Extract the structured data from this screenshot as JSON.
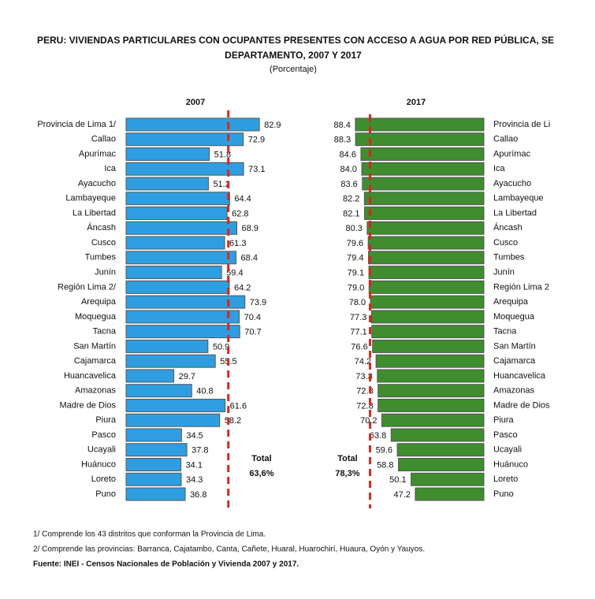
{
  "title_lines": [
    "PERU: VIVIENDAS PARTICULARES CON OCUPANTES PRESENTES CON ACCESO A  AGUA POR RED PÚBLICA, SE",
    "DEPARTAMENTO, 2007 Y 2017"
  ],
  "subtitle": "(Porcentaje)",
  "notes": [
    "1/ Comprende los 43 distritos que conforman la Provincia de Lima.",
    "2/ Comprende las provincias: Barranca, Cajatambo, Canta, Cañete, Huaral, Huarochirí, Huaura, Oyón y Yauyos."
  ],
  "source": "Fuente: INEI - Censos Nacionales de Población y Vivienda 2007 y 2017.",
  "chart_data": [
    {
      "type": "bar",
      "orientation": "horizontal",
      "title": "2007",
      "color": "#2f9ee0",
      "x_reversed": false,
      "xlim": [
        0,
        85
      ],
      "categories": [
        "Provincia de Lima 1/",
        "Callao",
        "Apurímac",
        "Ica",
        "Ayacucho",
        "Lambayeque",
        "La Libertad",
        "Áncash",
        "Cusco",
        "Tumbes",
        "Junín",
        "Región Lima 2/",
        "Arequipa",
        "Moquegua",
        "Tacna",
        "San Martín",
        "Cajamarca",
        "Huancavelica",
        "Amazonas",
        "Madre de Dios",
        "Piura",
        "Pasco",
        "Ucayali",
        "Huánuco",
        "Loreto",
        "Puno"
      ],
      "values": [
        82.9,
        72.9,
        51.8,
        73.1,
        51.2,
        64.4,
        62.8,
        68.9,
        61.3,
        68.4,
        59.4,
        64.2,
        73.9,
        70.4,
        70.7,
        50.9,
        55.5,
        29.7,
        40.8,
        61.6,
        58.2,
        34.5,
        37.8,
        34.1,
        34.3,
        36.8
      ],
      "total": {
        "label": "Total",
        "value": 63.6,
        "value_label": "63,6%",
        "color": "#d9261c"
      }
    },
    {
      "type": "bar",
      "orientation": "horizontal",
      "title": "2017",
      "color": "#3f8d2f",
      "x_reversed": true,
      "xlim": [
        0,
        90
      ],
      "categories": [
        "Provincia de Li",
        "Callao",
        "Apurímac",
        "Ica",
        "Ayacucho",
        "Lambayeque",
        "La Libertad",
        "Áncash",
        "Cusco",
        "Tumbes",
        "Junín",
        "Región Lima 2",
        "Arequipa",
        "Moquegua",
        "Tacna",
        "San Martín",
        "Cajamarca",
        "Huancavelica",
        "Amazonas",
        "Madre de Dios",
        "Piura",
        "Pasco",
        "Ucayali",
        "Huánuco",
        "Loreto",
        "Puno"
      ],
      "values": [
        88.4,
        88.3,
        84.6,
        84.0,
        83.6,
        82.2,
        82.1,
        80.3,
        79.6,
        79.4,
        79.1,
        79.0,
        78.0,
        77.3,
        77.1,
        76.6,
        74.2,
        73.3,
        72.8,
        72.8,
        70.2,
        63.8,
        59.6,
        58.8,
        50.1,
        47.2
      ],
      "value_labels": [
        "88.4",
        "88.3",
        "84.6",
        "84.0",
        "83.6",
        "82.2",
        "82.1",
        "80.3",
        "79.6",
        "79.4",
        "79.1",
        "79.0",
        "78.0",
        "77.3",
        "77.1",
        "76.6",
        "74.2",
        "73.3",
        "72.8",
        "72.8",
        "70.2",
        "63.8",
        "59.6",
        "58.8",
        "50.1",
        "47.2"
      ],
      "total": {
        "label": "Total",
        "value": 78.3,
        "value_label": "78,3%",
        "color": "#d9261c"
      }
    }
  ]
}
